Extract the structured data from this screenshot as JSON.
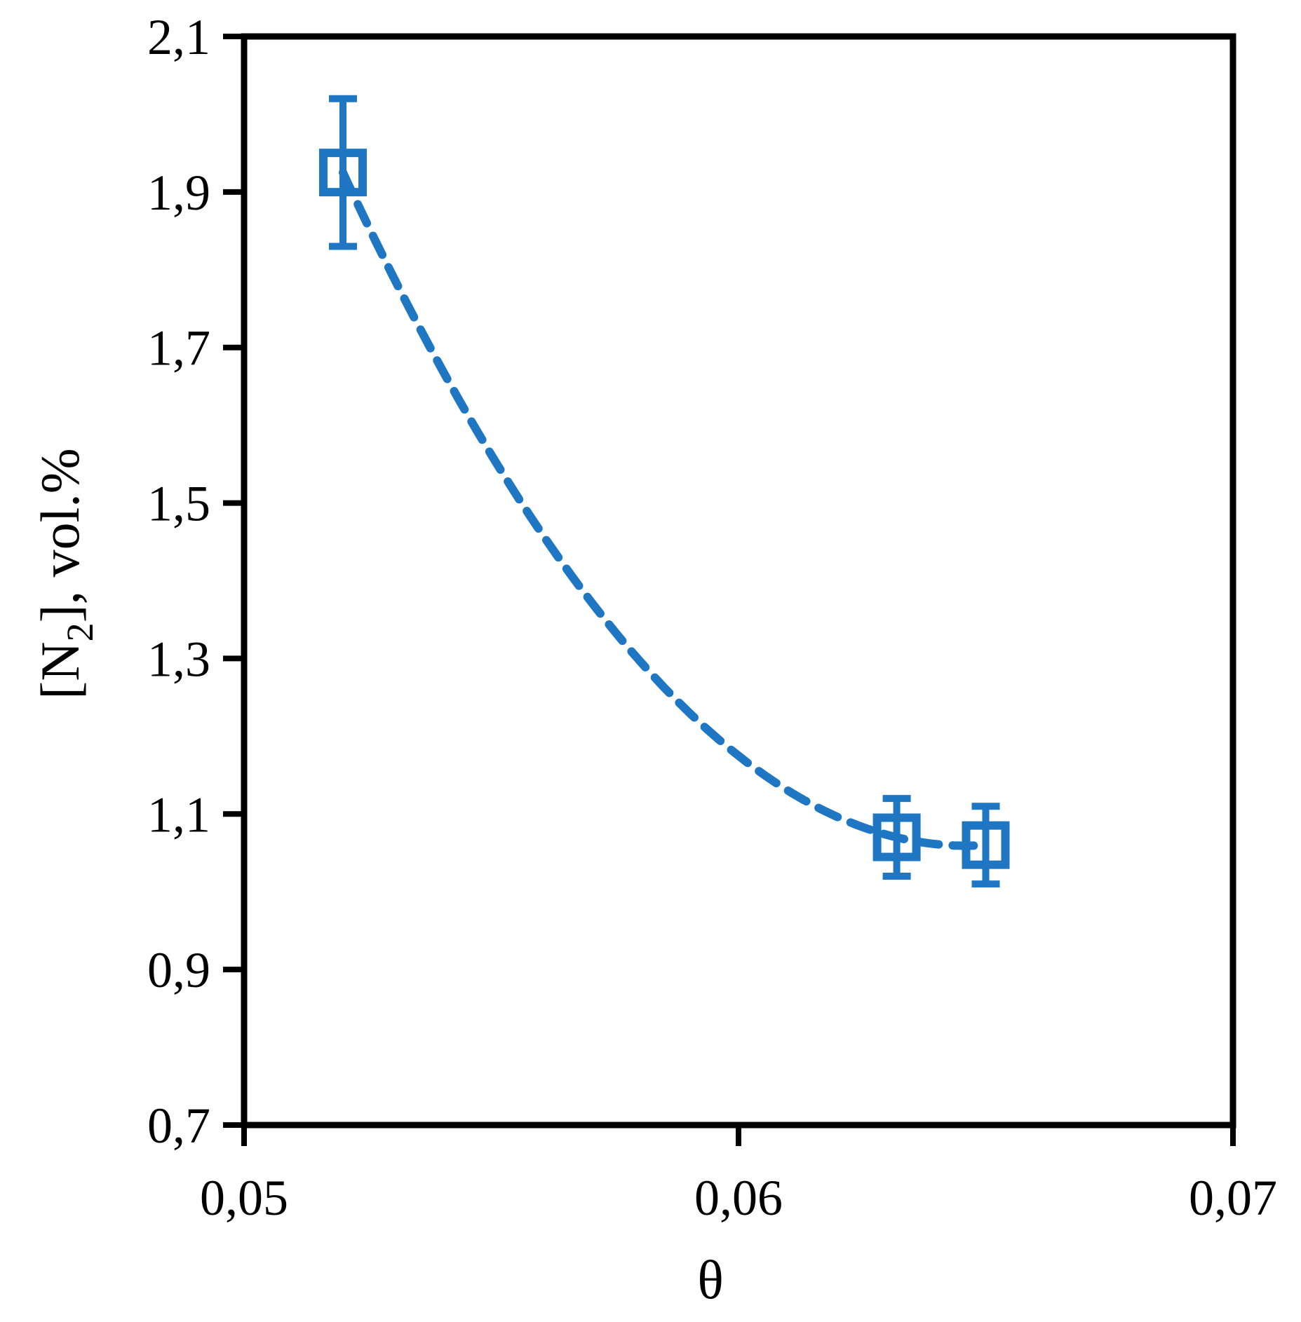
{
  "chart_data": {
    "type": "scatter",
    "xlabel": "θ",
    "ylabel": {
      "prefix": "[N",
      "subscript": "2",
      "suffix": "], vol.%"
    },
    "xlim": [
      0.05,
      0.07
    ],
    "ylim": [
      0.7,
      2.1
    ],
    "xticks": [
      0.05,
      0.06,
      0.07
    ],
    "xtick_labels": [
      "0,05",
      "0,06",
      "0,07"
    ],
    "yticks": [
      0.7,
      0.9,
      1.1,
      1.3,
      1.5,
      1.7,
      1.9,
      2.1
    ],
    "ytick_labels": [
      "0,7",
      "0,9",
      "1,1",
      "1,3",
      "1,5",
      "1,7",
      "1,9",
      "2,1"
    ],
    "grid": false,
    "series": [
      {
        "marker": "open-square",
        "color": "#1f77c4",
        "points": [
          {
            "x": 0.052,
            "y": 1.925,
            "err_lo": 1.83,
            "err_hi": 2.02
          },
          {
            "x": 0.0632,
            "y": 1.07,
            "err_lo": 1.02,
            "err_hi": 1.12
          },
          {
            "x": 0.065,
            "y": 1.06,
            "err_lo": 1.01,
            "err_hi": 1.11
          }
        ]
      }
    ],
    "trendline": {
      "style": "dashed",
      "color": "#1f77c4",
      "x_range": [
        0.052,
        0.065
      ]
    }
  }
}
